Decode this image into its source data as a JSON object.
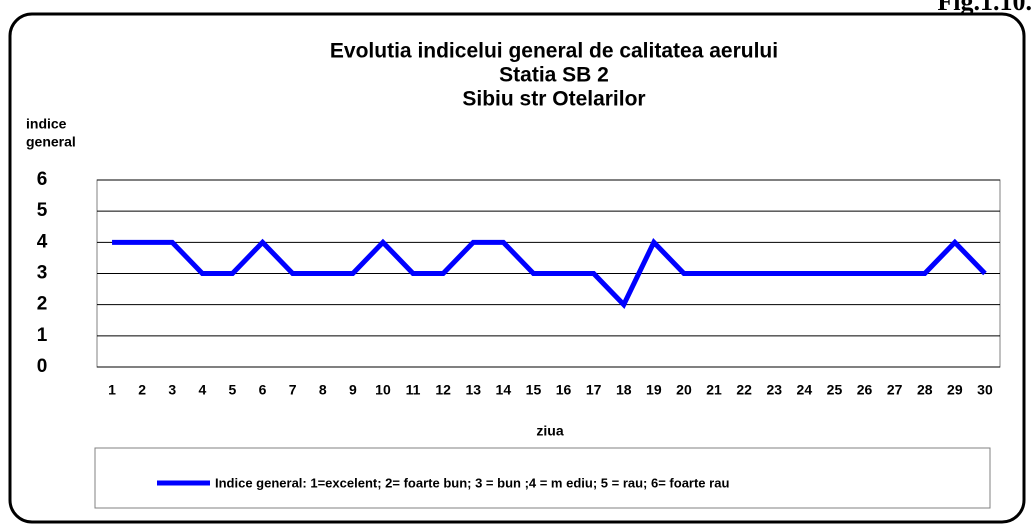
{
  "chart_data": {
    "type": "line",
    "figure_label": "Fig.1.10.",
    "title": "Evolutia indicelui  general de calitatea aerului",
    "subtitle": [
      "Statia SB 2",
      "Sibiu str Otelarilor"
    ],
    "ylabel": [
      "indice",
      "general"
    ],
    "xlabel": "ziua",
    "categories": [
      "1",
      "2",
      "3",
      "4",
      "5",
      "6",
      "7",
      "8",
      "9",
      "10",
      "11",
      "12",
      "13",
      "14",
      "15",
      "16",
      "17",
      "18",
      "19",
      "20",
      "21",
      "22",
      "23",
      "24",
      "25",
      "26",
      "27",
      "28",
      "29",
      "30"
    ],
    "series": [
      {
        "name": "Indice general: 1=excelent; 2= foarte bun; 3 = bun ;4 = m ediu; 5 = rau; 6= foarte rau",
        "color": "#0000ff",
        "values": [
          4,
          4,
          4,
          3,
          3,
          4,
          3,
          3,
          3,
          4,
          3,
          3,
          4,
          4,
          3,
          3,
          3,
          2,
          4,
          3,
          3,
          3,
          3,
          3,
          3,
          3,
          3,
          3,
          4,
          3
        ]
      }
    ],
    "ylim": [
      0,
      6
    ],
    "yticks": [
      0,
      1,
      2,
      3,
      4,
      5,
      6
    ],
    "grid": true
  }
}
